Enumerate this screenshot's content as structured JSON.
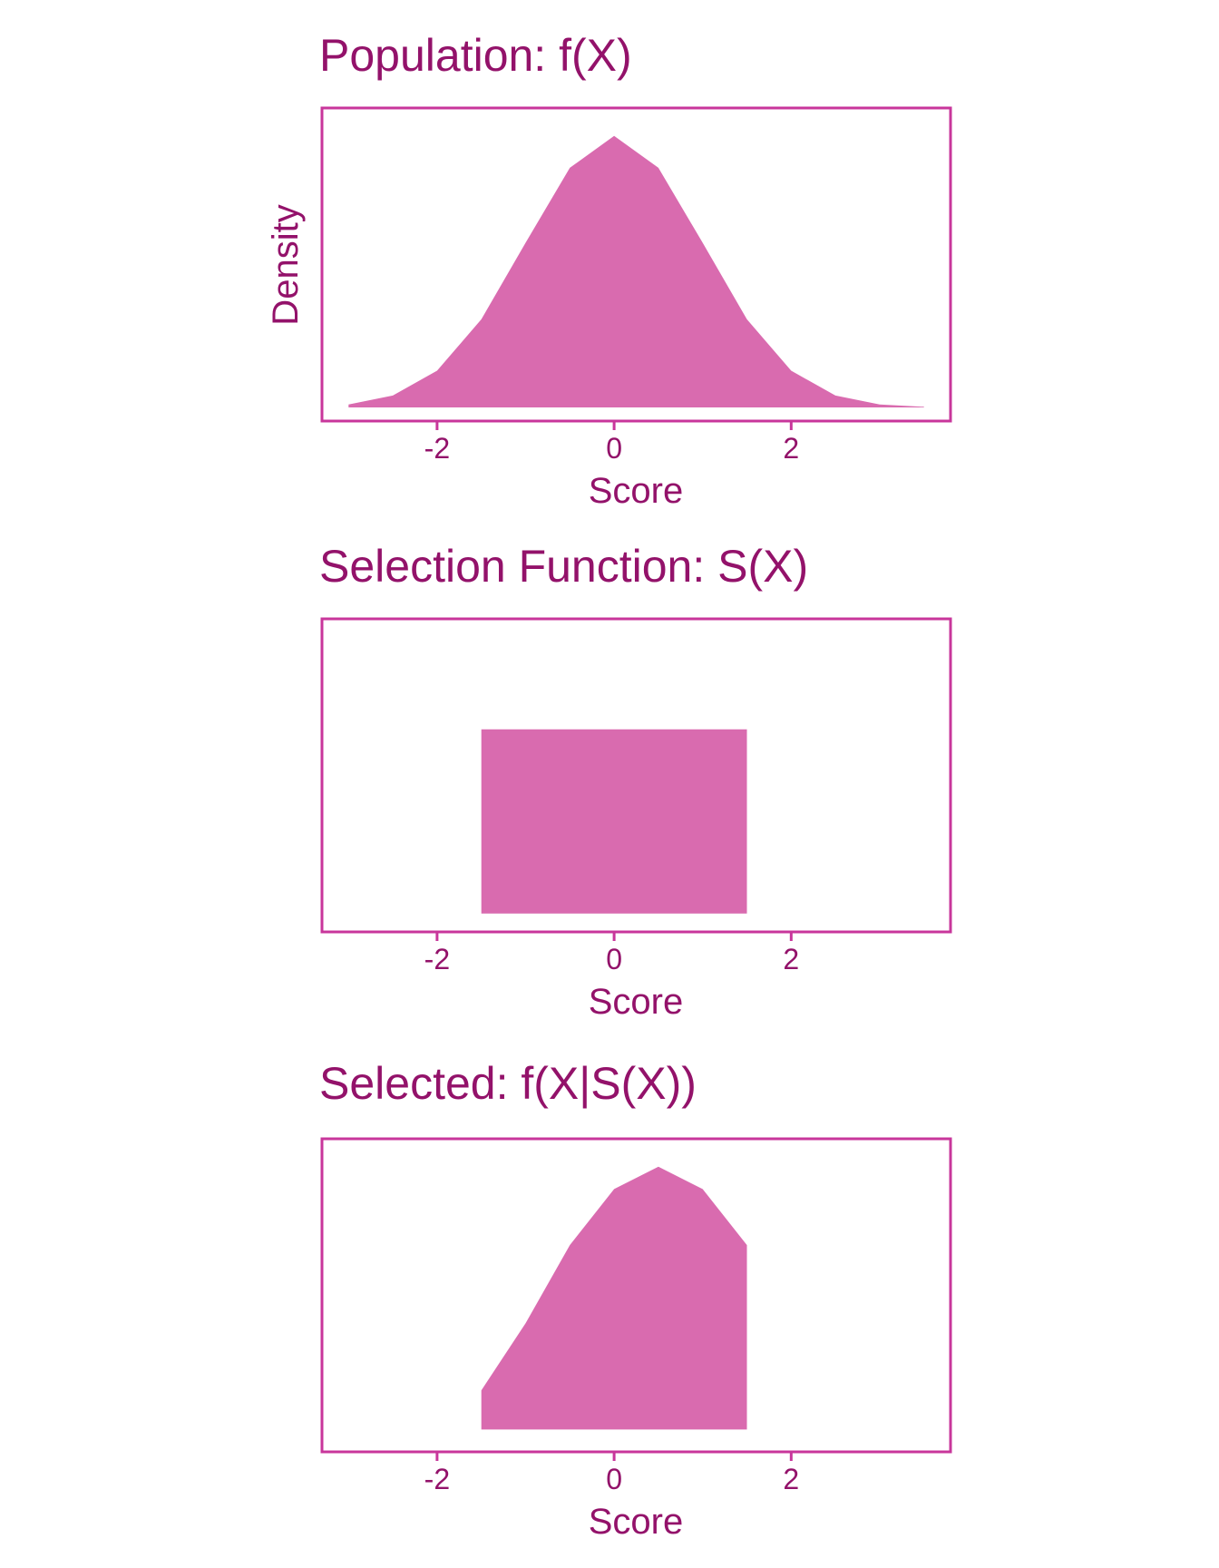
{
  "colors": {
    "text": "#93126A",
    "frame": "#C8369B",
    "fill": "#D96BAF",
    "background": "#FFFFFF"
  },
  "chart_data": [
    {
      "type": "area",
      "title": "Population: f(X)",
      "xlabel": "Score",
      "ylabel": "Density",
      "xlim": [
        -3.3,
        3.8
      ],
      "ylim": [
        -0.02,
        0.44
      ],
      "xticks": [
        -2,
        0,
        2
      ],
      "xtick_labels": [
        "-2",
        "0",
        "2"
      ],
      "grid": false,
      "x": [
        -3.0,
        -2.5,
        -2.0,
        -1.5,
        -1.0,
        -0.5,
        0.0,
        0.5,
        1.0,
        1.5,
        2.0,
        2.5,
        3.0,
        3.5
      ],
      "y": [
        0.0044,
        0.0175,
        0.054,
        0.1295,
        0.242,
        0.3521,
        0.3989,
        0.3521,
        0.242,
        0.1295,
        0.054,
        0.0175,
        0.0044,
        0.0009
      ]
    },
    {
      "type": "area",
      "title": "Selection Function: S(X)",
      "xlabel": "Score",
      "ylabel": "",
      "xlim": [
        -3.3,
        3.8
      ],
      "ylim": [
        -0.1,
        1.6
      ],
      "xticks": [
        -2,
        0,
        2
      ],
      "xtick_labels": [
        "-2",
        "0",
        "2"
      ],
      "grid": false,
      "x": [
        -1.5,
        -1.5,
        1.5,
        1.5
      ],
      "y": [
        0,
        1,
        1,
        0
      ]
    },
    {
      "type": "area",
      "title": "Selected: f(X|S(X))",
      "xlabel": "Score",
      "ylabel": "",
      "xlim": [
        -3.3,
        3.8
      ],
      "ylim": [
        -0.04,
        0.52
      ],
      "xticks": [
        -2,
        0,
        2
      ],
      "xtick_labels": [
        "-2",
        "0",
        "2"
      ],
      "grid": false,
      "x": [
        -1.5,
        -1.5,
        -1.0,
        -0.5,
        0.0,
        0.5,
        1.0,
        1.5,
        1.5
      ],
      "y": [
        0,
        0.07,
        0.19,
        0.33,
        0.43,
        0.47,
        0.43,
        0.33,
        0
      ]
    }
  ]
}
